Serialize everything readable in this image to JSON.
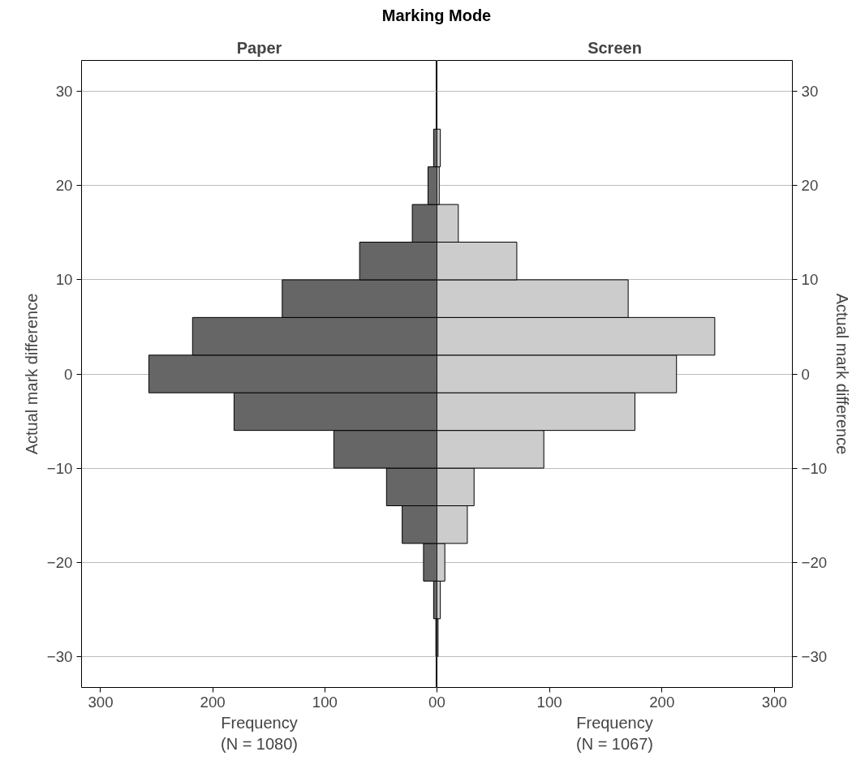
{
  "chart_data": [
    {
      "type": "histogram",
      "orientation": "horizontal",
      "title": "Paper",
      "annotations": [
        "Marking Mode"
      ],
      "xlabel": "Frequency\n(N = 1080)",
      "ylabel": "Actual mark difference",
      "color": "#666666",
      "bins": [
        -30,
        -26,
        -22,
        -18,
        -14,
        -10,
        -6,
        -2,
        2,
        6,
        10,
        14,
        18,
        22,
        26
      ],
      "values": [
        1,
        3,
        12,
        31,
        45,
        92,
        181,
        257,
        218,
        138,
        69,
        22,
        8,
        3
      ],
      "xlim": [
        317,
        0
      ],
      "xticks": [
        0,
        100,
        200,
        300
      ],
      "ylim": [
        -33.3,
        33.3
      ],
      "yticks": [
        -30,
        -20,
        -10,
        0,
        10,
        20,
        30
      ],
      "grid": "y"
    },
    {
      "type": "histogram",
      "orientation": "horizontal",
      "title": "Screen",
      "xlabel": "Frequency\n(N = 1067)",
      "ylabel": "Actual mark difference",
      "color": "#cccccc",
      "bins": [
        -30,
        -26,
        -22,
        -18,
        -14,
        -10,
        -6,
        -2,
        2,
        6,
        10,
        14,
        18,
        22,
        26
      ],
      "values": [
        1,
        3,
        7,
        27,
        33,
        95,
        176,
        213,
        247,
        170,
        71,
        19,
        2,
        3
      ],
      "xlim": [
        0,
        316
      ],
      "xticks": [
        0,
        100,
        200,
        300
      ],
      "ylim": [
        -33.3,
        33.3
      ],
      "yticks": [
        -30,
        -20,
        -10,
        0,
        10,
        20,
        30
      ],
      "grid": "y"
    }
  ]
}
